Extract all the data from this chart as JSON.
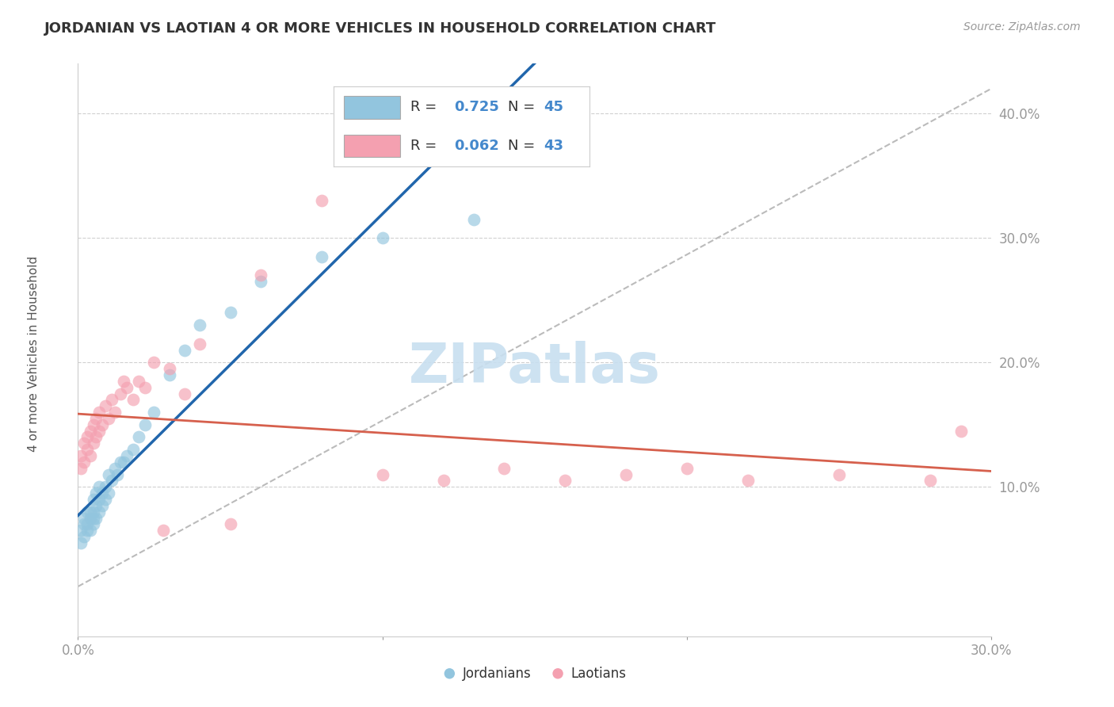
{
  "title": "JORDANIAN VS LAOTIAN 4 OR MORE VEHICLES IN HOUSEHOLD CORRELATION CHART",
  "source": "Source: ZipAtlas.com",
  "ylabel": "4 or more Vehicles in Household",
  "xlabel_jordanian": "Jordanians",
  "xlabel_laotian": "Laotians",
  "xlim": [
    0.0,
    0.3
  ],
  "ylim": [
    -0.02,
    0.44
  ],
  "xtick_positions": [
    0.0,
    0.1,
    0.2,
    0.3
  ],
  "xtick_labels": [
    "0.0%",
    "",
    "",
    "30.0%"
  ],
  "ytick_positions": [
    0.1,
    0.2,
    0.3,
    0.4
  ],
  "ytick_labels": [
    "10.0%",
    "20.0%",
    "30.0%",
    "40.0%"
  ],
  "jordanian_R": 0.725,
  "jordanian_N": 45,
  "laotian_R": 0.062,
  "laotian_N": 43,
  "jordanian_color": "#92c5de",
  "jordanian_line_color": "#2166ac",
  "laotian_color": "#f4a0b0",
  "laotian_line_color": "#d6604d",
  "trend_line_color": "#bbbbbb",
  "background_color": "#ffffff",
  "watermark": "ZIPatlas",
  "watermark_color": "#c8dff0",
  "jordanian_scatter_x": [
    0.001,
    0.001,
    0.002,
    0.002,
    0.002,
    0.003,
    0.003,
    0.003,
    0.004,
    0.004,
    0.004,
    0.005,
    0.005,
    0.005,
    0.005,
    0.006,
    0.006,
    0.006,
    0.007,
    0.007,
    0.007,
    0.008,
    0.008,
    0.009,
    0.009,
    0.01,
    0.01,
    0.011,
    0.012,
    0.013,
    0.014,
    0.015,
    0.016,
    0.018,
    0.02,
    0.022,
    0.025,
    0.03,
    0.035,
    0.04,
    0.05,
    0.06,
    0.08,
    0.1,
    0.13
  ],
  "jordanian_scatter_y": [
    0.055,
    0.065,
    0.06,
    0.07,
    0.075,
    0.065,
    0.07,
    0.08,
    0.065,
    0.075,
    0.08,
    0.07,
    0.075,
    0.08,
    0.09,
    0.075,
    0.085,
    0.095,
    0.08,
    0.09,
    0.1,
    0.085,
    0.095,
    0.09,
    0.1,
    0.095,
    0.11,
    0.105,
    0.115,
    0.11,
    0.12,
    0.12,
    0.125,
    0.13,
    0.14,
    0.15,
    0.16,
    0.19,
    0.21,
    0.23,
    0.24,
    0.265,
    0.285,
    0.3,
    0.315
  ],
  "laotian_scatter_x": [
    0.001,
    0.001,
    0.002,
    0.002,
    0.003,
    0.003,
    0.004,
    0.004,
    0.005,
    0.005,
    0.006,
    0.006,
    0.007,
    0.007,
    0.008,
    0.009,
    0.01,
    0.011,
    0.012,
    0.014,
    0.016,
    0.018,
    0.02,
    0.025,
    0.03,
    0.035,
    0.04,
    0.06,
    0.08,
    0.1,
    0.12,
    0.14,
    0.16,
    0.18,
    0.2,
    0.22,
    0.25,
    0.28,
    0.29,
    0.015,
    0.022,
    0.028,
    0.05
  ],
  "laotian_scatter_y": [
    0.115,
    0.125,
    0.12,
    0.135,
    0.13,
    0.14,
    0.125,
    0.145,
    0.135,
    0.15,
    0.14,
    0.155,
    0.145,
    0.16,
    0.15,
    0.165,
    0.155,
    0.17,
    0.16,
    0.175,
    0.18,
    0.17,
    0.185,
    0.2,
    0.195,
    0.175,
    0.215,
    0.27,
    0.33,
    0.11,
    0.105,
    0.115,
    0.105,
    0.11,
    0.115,
    0.105,
    0.11,
    0.105,
    0.145,
    0.185,
    0.18,
    0.065,
    0.07
  ]
}
